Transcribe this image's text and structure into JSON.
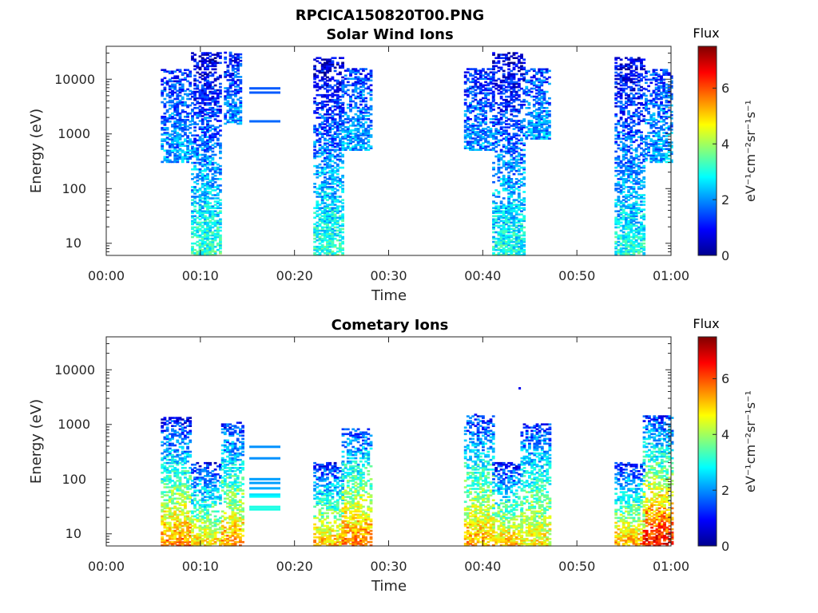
{
  "figure_title": "RPCICA150820T00.PNG",
  "chart_data": [
    {
      "type": "heatmap",
      "title": "Solar Wind Ions",
      "xlabel": "Time",
      "ylabel": "Energy (eV)",
      "x_ticks": [
        "00:00",
        "00:10",
        "00:20",
        "00:30",
        "00:40",
        "00:50",
        "01:00"
      ],
      "x_range_minutes": [
        0,
        60
      ],
      "y_scale": "log",
      "y_ticks": [
        "10",
        "100",
        "1000",
        "10000"
      ],
      "y_range": [
        6,
        40000
      ],
      "colorbar": {
        "title": "Flux",
        "label": "eV⁻¹cm⁻²sr⁻¹s⁻¹",
        "ticks": [
          "0",
          "2",
          "4",
          "6"
        ],
        "range": [
          0,
          7.5
        ]
      },
      "colormap": "jet",
      "clusters": [
        {
          "t_min": 9,
          "t_max": 12,
          "e_min": 6,
          "e_max": 30000,
          "flux_low_e": 3.2,
          "flux_high_e": 0.6
        },
        {
          "t_min": 5.8,
          "t_max": 9,
          "e_min": 300,
          "e_max": 15000,
          "flux_low_e": 2.2,
          "flux_high_e": 1.2
        },
        {
          "t_min": 12.5,
          "t_max": 14.2,
          "e_min": 1500,
          "e_max": 30000,
          "flux_low_e": 2.0,
          "flux_high_e": 1.0
        },
        {
          "t_min": 22,
          "t_max": 25,
          "e_min": 6,
          "e_max": 25000,
          "flux_low_e": 3.2,
          "flux_high_e": 0.6
        },
        {
          "t_min": 25,
          "t_max": 28,
          "e_min": 500,
          "e_max": 15000,
          "flux_low_e": 2.2,
          "flux_high_e": 1.3
        },
        {
          "t_min": 38,
          "t_max": 41,
          "e_min": 500,
          "e_max": 15000,
          "flux_low_e": 2.0,
          "flux_high_e": 1.2
        },
        {
          "t_min": 41,
          "t_max": 44.5,
          "e_min": 6,
          "e_max": 30000,
          "flux_low_e": 3.0,
          "flux_high_e": 0.6
        },
        {
          "t_min": 44.5,
          "t_max": 47,
          "e_min": 800,
          "e_max": 15000,
          "flux_low_e": 2.2,
          "flux_high_e": 1.4
        },
        {
          "t_min": 54,
          "t_max": 57.2,
          "e_min": 6,
          "e_max": 25000,
          "flux_low_e": 3.0,
          "flux_high_e": 0.7
        },
        {
          "t_min": 57.2,
          "t_max": 60,
          "e_min": 300,
          "e_max": 15000,
          "flux_low_e": 2.2,
          "flux_high_e": 1.4
        }
      ],
      "lines": [
        {
          "t_min": 15.2,
          "t_max": 18.5,
          "energy": 6800,
          "flux": 1.6
        },
        {
          "t_min": 15.2,
          "t_max": 18.5,
          "energy": 5700,
          "flux": 1.6
        },
        {
          "t_min": 15.2,
          "t_max": 18.5,
          "energy": 1700,
          "flux": 1.7
        }
      ]
    },
    {
      "type": "heatmap",
      "title": "Cometary Ions",
      "xlabel": "Time",
      "ylabel": "Energy (eV)",
      "x_ticks": [
        "00:00",
        "00:10",
        "00:20",
        "00:30",
        "00:40",
        "00:50",
        "01:00"
      ],
      "x_range_minutes": [
        0,
        60
      ],
      "y_scale": "log",
      "y_ticks": [
        "10",
        "100",
        "1000",
        "10000"
      ],
      "y_range": [
        6,
        40000
      ],
      "colorbar": {
        "title": "Flux",
        "label": "eV⁻¹cm⁻²sr⁻¹s⁻¹",
        "ticks": [
          "0",
          "2",
          "4",
          "6"
        ],
        "range": [
          0,
          7.5
        ]
      },
      "colormap": "jet",
      "clusters": [
        {
          "t_min": 5.8,
          "t_max": 9,
          "e_min": 6,
          "e_max": 1300,
          "flux_low_e": 5.6,
          "flux_high_e": 1.0
        },
        {
          "t_min": 9,
          "t_max": 12.2,
          "e_min": 6,
          "e_max": 200,
          "flux_low_e": 5.0,
          "flux_high_e": 1.0
        },
        {
          "t_min": 12.2,
          "t_max": 14.5,
          "e_min": 6,
          "e_max": 1100,
          "flux_low_e": 5.4,
          "flux_high_e": 1.2
        },
        {
          "t_min": 22,
          "t_max": 25,
          "e_min": 6,
          "e_max": 200,
          "flux_low_e": 5.2,
          "flux_high_e": 1.0
        },
        {
          "t_min": 25,
          "t_max": 28,
          "e_min": 6,
          "e_max": 800,
          "flux_low_e": 5.8,
          "flux_high_e": 1.4
        },
        {
          "t_min": 38,
          "t_max": 41,
          "e_min": 6,
          "e_max": 1500,
          "flux_low_e": 5.4,
          "flux_high_e": 1.2
        },
        {
          "t_min": 41,
          "t_max": 44,
          "e_min": 6,
          "e_max": 200,
          "flux_low_e": 5.2,
          "flux_high_e": 1.0
        },
        {
          "t_min": 44,
          "t_max": 47,
          "e_min": 6,
          "e_max": 1000,
          "flux_low_e": 4.8,
          "flux_high_e": 1.3
        },
        {
          "t_min": 54,
          "t_max": 57,
          "e_min": 6,
          "e_max": 200,
          "flux_low_e": 5.4,
          "flux_high_e": 1.0
        },
        {
          "t_min": 57,
          "t_max": 60,
          "e_min": 6,
          "e_max": 1400,
          "flux_low_e": 6.6,
          "flux_high_e": 1.3
        }
      ],
      "lines": [
        {
          "t_min": 15.2,
          "t_max": 18.5,
          "energy": 390,
          "flux": 2.0
        },
        {
          "t_min": 15.2,
          "t_max": 18.5,
          "energy": 240,
          "flux": 2.0
        },
        {
          "t_min": 15.2,
          "t_max": 18.5,
          "energy": 100,
          "flux": 2.1
        },
        {
          "t_min": 15.2,
          "t_max": 18.5,
          "energy": 85,
          "flux": 2.1
        },
        {
          "t_min": 15.2,
          "t_max": 18.5,
          "energy": 68,
          "flux": 2.2
        },
        {
          "t_min": 15.2,
          "t_max": 18.5,
          "energy": 52,
          "flux": 2.6
        },
        {
          "t_min": 15.2,
          "t_max": 18.5,
          "energy": 48,
          "flux": 2.8
        },
        {
          "t_min": 15.2,
          "t_max": 18.5,
          "energy": 31,
          "flux": 3.0
        },
        {
          "t_min": 15.2,
          "t_max": 18.5,
          "energy": 28,
          "flux": 3.0
        }
      ],
      "points": [
        {
          "t": 43.8,
          "energy": 4500,
          "flux": 0.8
        }
      ]
    }
  ]
}
